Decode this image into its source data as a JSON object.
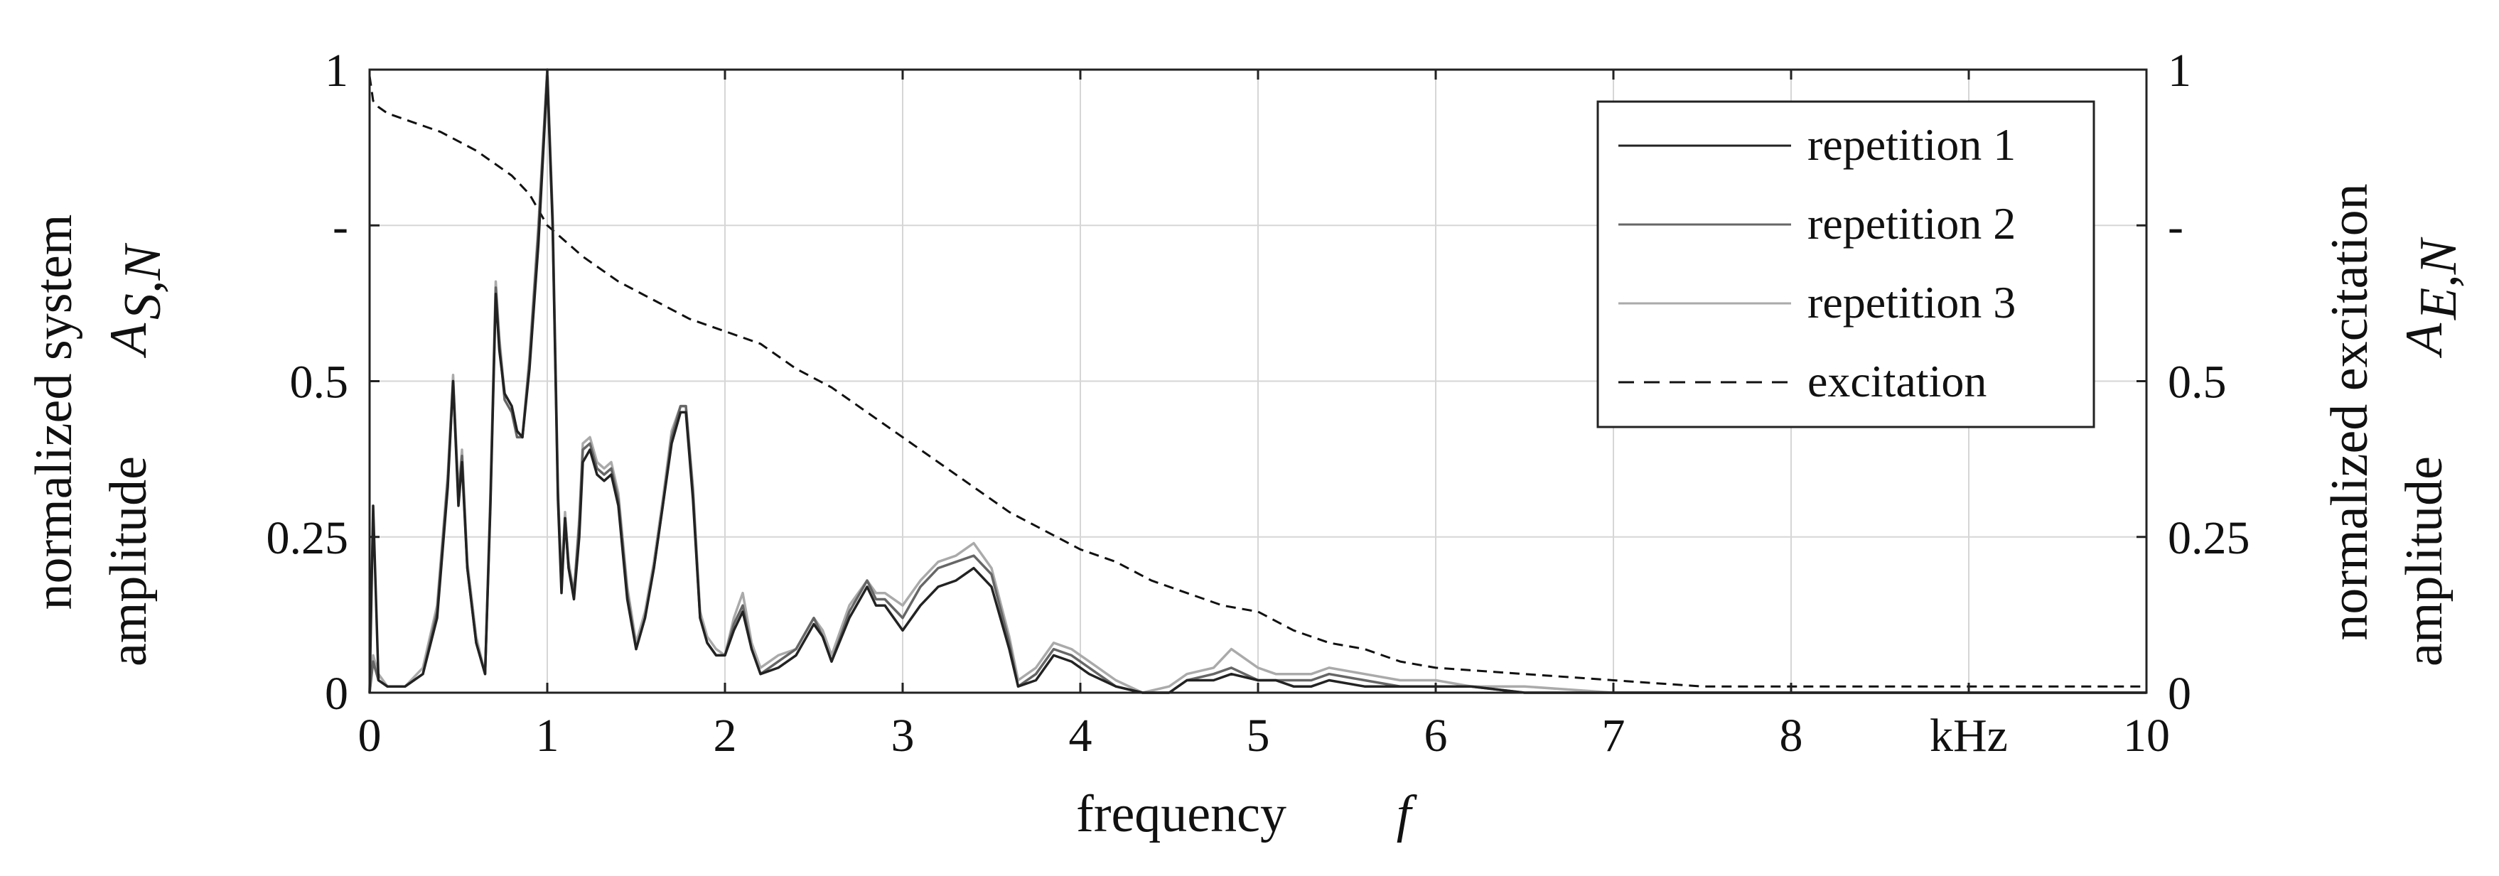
{
  "chart_data": {
    "type": "line",
    "xlabel": "frequency",
    "xlabel_symbol": "f",
    "ylabel_left_line1": "normalized system",
    "ylabel_left_line2": "amplitude",
    "ylabel_left_symbol": "A",
    "ylabel_left_subscript": "S,N",
    "ylabel_right_line1": "normalized excitation",
    "ylabel_right_line2": "amplitude",
    "ylabel_right_symbol": "A",
    "ylabel_right_subscript": "E,N",
    "xlim": [
      0,
      10
    ],
    "ylim": [
      0,
      1
    ],
    "x_ticks": [
      {
        "value": 0,
        "label": "0"
      },
      {
        "value": 1,
        "label": "1"
      },
      {
        "value": 2,
        "label": "2"
      },
      {
        "value": 3,
        "label": "3"
      },
      {
        "value": 4,
        "label": "4"
      },
      {
        "value": 5,
        "label": "5"
      },
      {
        "value": 6,
        "label": "6"
      },
      {
        "value": 7,
        "label": "7"
      },
      {
        "value": 8,
        "label": "8"
      },
      {
        "value": 9,
        "label": "kHz"
      },
      {
        "value": 10,
        "label": "10"
      }
    ],
    "y_ticks_left": [
      {
        "value": 0,
        "label": "0"
      },
      {
        "value": 0.25,
        "label": "0.25"
      },
      {
        "value": 0.5,
        "label": "0.5"
      },
      {
        "value": 0.75,
        "label": "-"
      },
      {
        "value": 1,
        "label": "1"
      }
    ],
    "y_ticks_right": [
      {
        "value": 0,
        "label": "0"
      },
      {
        "value": 0.25,
        "label": "0.25"
      },
      {
        "value": 0.5,
        "label": "0.5"
      },
      {
        "value": 0.75,
        "label": "-"
      },
      {
        "value": 1,
        "label": "1"
      }
    ],
    "grid": true,
    "legend_position": "top-right",
    "series": [
      {
        "name": "repetition 1",
        "color": "#222222",
        "style": "solid",
        "x": [
          0,
          0.02,
          0.05,
          0.1,
          0.2,
          0.3,
          0.38,
          0.44,
          0.47,
          0.5,
          0.52,
          0.55,
          0.6,
          0.65,
          0.68,
          0.71,
          0.73,
          0.76,
          0.8,
          0.83,
          0.86,
          0.9,
          0.95,
          1.0,
          1.03,
          1.06,
          1.08,
          1.1,
          1.12,
          1.15,
          1.18,
          1.2,
          1.24,
          1.28,
          1.32,
          1.36,
          1.4,
          1.45,
          1.5,
          1.55,
          1.6,
          1.65,
          1.7,
          1.75,
          1.78,
          1.82,
          1.86,
          1.9,
          1.95,
          2.0,
          2.05,
          2.1,
          2.15,
          2.2,
          2.3,
          2.4,
          2.5,
          2.55,
          2.6,
          2.7,
          2.8,
          2.85,
          2.9,
          3.0,
          3.1,
          3.2,
          3.3,
          3.4,
          3.5,
          3.6,
          3.65,
          3.75,
          3.85,
          3.95,
          4.05,
          4.2,
          4.35,
          4.5,
          4.6,
          4.75,
          4.85,
          5.0,
          5.1,
          5.2,
          5.3,
          5.4,
          5.6,
          5.8,
          6.0,
          6.2,
          6.5,
          7.0,
          7.5,
          8.0,
          8.5,
          9.0,
          9.5,
          10.0
        ],
        "y": [
          0.0,
          0.3,
          0.02,
          0.01,
          0.01,
          0.03,
          0.12,
          0.33,
          0.5,
          0.3,
          0.37,
          0.2,
          0.08,
          0.03,
          0.3,
          0.64,
          0.55,
          0.48,
          0.46,
          0.42,
          0.41,
          0.52,
          0.72,
          0.99,
          0.75,
          0.31,
          0.16,
          0.28,
          0.2,
          0.15,
          0.25,
          0.37,
          0.39,
          0.35,
          0.34,
          0.35,
          0.3,
          0.15,
          0.07,
          0.12,
          0.2,
          0.3,
          0.4,
          0.45,
          0.45,
          0.31,
          0.12,
          0.08,
          0.06,
          0.06,
          0.1,
          0.13,
          0.07,
          0.03,
          0.04,
          0.06,
          0.11,
          0.09,
          0.05,
          0.12,
          0.17,
          0.14,
          0.14,
          0.1,
          0.14,
          0.17,
          0.18,
          0.2,
          0.17,
          0.07,
          0.01,
          0.02,
          0.06,
          0.05,
          0.03,
          0.01,
          0.0,
          0.0,
          0.02,
          0.02,
          0.03,
          0.02,
          0.02,
          0.01,
          0.01,
          0.02,
          0.01,
          0.01,
          0.01,
          0.01,
          0.0,
          0.0,
          0.0,
          0.0,
          0.0,
          0.0,
          0.0,
          0.0
        ]
      },
      {
        "name": "repetition 2",
        "color": "#666666",
        "style": "solid",
        "x": [
          0,
          0.02,
          0.05,
          0.1,
          0.2,
          0.3,
          0.38,
          0.44,
          0.47,
          0.5,
          0.52,
          0.55,
          0.6,
          0.65,
          0.68,
          0.71,
          0.73,
          0.76,
          0.8,
          0.83,
          0.86,
          0.9,
          0.95,
          1.0,
          1.03,
          1.06,
          1.08,
          1.1,
          1.12,
          1.15,
          1.18,
          1.2,
          1.24,
          1.28,
          1.32,
          1.36,
          1.4,
          1.45,
          1.5,
          1.55,
          1.6,
          1.65,
          1.7,
          1.75,
          1.78,
          1.82,
          1.86,
          1.9,
          1.95,
          2.0,
          2.05,
          2.1,
          2.15,
          2.2,
          2.3,
          2.4,
          2.5,
          2.55,
          2.6,
          2.7,
          2.8,
          2.85,
          2.9,
          3.0,
          3.1,
          3.2,
          3.3,
          3.4,
          3.5,
          3.6,
          3.65,
          3.75,
          3.85,
          3.95,
          4.05,
          4.2,
          4.35,
          4.5,
          4.6,
          4.75,
          4.85,
          5.0,
          5.1,
          5.2,
          5.3,
          5.4,
          5.6,
          5.8,
          6.0,
          6.2,
          6.5,
          7.0,
          7.5,
          8.0,
          8.5,
          9.0,
          9.5,
          10.0
        ],
        "y": [
          0.0,
          0.05,
          0.02,
          0.01,
          0.01,
          0.03,
          0.13,
          0.34,
          0.5,
          0.31,
          0.38,
          0.2,
          0.08,
          0.03,
          0.31,
          0.65,
          0.56,
          0.47,
          0.45,
          0.41,
          0.41,
          0.53,
          0.74,
          1.0,
          0.76,
          0.32,
          0.17,
          0.28,
          0.2,
          0.16,
          0.27,
          0.39,
          0.4,
          0.36,
          0.35,
          0.36,
          0.31,
          0.16,
          0.07,
          0.12,
          0.2,
          0.3,
          0.41,
          0.46,
          0.46,
          0.32,
          0.12,
          0.08,
          0.06,
          0.06,
          0.11,
          0.14,
          0.07,
          0.03,
          0.05,
          0.07,
          0.12,
          0.09,
          0.05,
          0.13,
          0.18,
          0.15,
          0.15,
          0.12,
          0.17,
          0.2,
          0.21,
          0.22,
          0.19,
          0.08,
          0.01,
          0.03,
          0.07,
          0.06,
          0.04,
          0.01,
          0.0,
          0.0,
          0.02,
          0.03,
          0.04,
          0.02,
          0.02,
          0.02,
          0.02,
          0.03,
          0.02,
          0.01,
          0.01,
          0.01,
          0.0,
          0.0,
          0.0,
          0.0,
          0.0,
          0.0,
          0.0,
          0.0
        ]
      },
      {
        "name": "repetition 3",
        "color": "#aaaaaa",
        "style": "solid",
        "x": [
          0,
          0.02,
          0.05,
          0.1,
          0.2,
          0.3,
          0.38,
          0.44,
          0.47,
          0.5,
          0.52,
          0.55,
          0.6,
          0.65,
          0.68,
          0.71,
          0.73,
          0.76,
          0.8,
          0.83,
          0.86,
          0.9,
          0.95,
          1.0,
          1.03,
          1.06,
          1.08,
          1.1,
          1.12,
          1.15,
          1.18,
          1.2,
          1.24,
          1.28,
          1.32,
          1.36,
          1.4,
          1.45,
          1.5,
          1.55,
          1.6,
          1.65,
          1.7,
          1.75,
          1.78,
          1.82,
          1.86,
          1.9,
          1.95,
          2.0,
          2.05,
          2.1,
          2.15,
          2.2,
          2.3,
          2.4,
          2.5,
          2.55,
          2.6,
          2.7,
          2.8,
          2.85,
          2.9,
          3.0,
          3.1,
          3.2,
          3.3,
          3.4,
          3.5,
          3.6,
          3.65,
          3.75,
          3.85,
          3.95,
          4.05,
          4.2,
          4.35,
          4.5,
          4.6,
          4.75,
          4.85,
          5.0,
          5.1,
          5.2,
          5.3,
          5.4,
          5.6,
          5.8,
          6.0,
          6.2,
          6.5,
          7.0,
          7.5,
          8.0,
          8.5,
          9.0,
          9.5,
          10.0
        ],
        "y": [
          0.0,
          0.06,
          0.03,
          0.01,
          0.01,
          0.04,
          0.14,
          0.35,
          0.51,
          0.32,
          0.39,
          0.21,
          0.09,
          0.03,
          0.32,
          0.66,
          0.57,
          0.48,
          0.46,
          0.42,
          0.41,
          0.54,
          0.75,
          1.0,
          0.77,
          0.33,
          0.18,
          0.29,
          0.21,
          0.16,
          0.28,
          0.4,
          0.41,
          0.37,
          0.36,
          0.37,
          0.32,
          0.17,
          0.08,
          0.13,
          0.21,
          0.31,
          0.42,
          0.46,
          0.46,
          0.33,
          0.13,
          0.09,
          0.07,
          0.06,
          0.12,
          0.16,
          0.08,
          0.04,
          0.06,
          0.07,
          0.12,
          0.1,
          0.06,
          0.14,
          0.18,
          0.16,
          0.16,
          0.14,
          0.18,
          0.21,
          0.22,
          0.24,
          0.2,
          0.09,
          0.02,
          0.04,
          0.08,
          0.07,
          0.05,
          0.02,
          0.0,
          0.01,
          0.03,
          0.04,
          0.07,
          0.04,
          0.03,
          0.03,
          0.03,
          0.04,
          0.03,
          0.02,
          0.02,
          0.01,
          0.01,
          0.0,
          0.0,
          0.0,
          0.0,
          0.0,
          0.0,
          0.0
        ]
      },
      {
        "name": "excitation",
        "color": "#111111",
        "style": "dashed",
        "x": [
          0,
          0.02,
          0.05,
          0.1,
          0.2,
          0.4,
          0.6,
          0.8,
          0.9,
          1.0,
          1.2,
          1.4,
          1.6,
          1.8,
          2.0,
          2.2,
          2.4,
          2.6,
          2.8,
          3.0,
          3.2,
          3.4,
          3.6,
          3.8,
          4.0,
          4.2,
          4.4,
          4.6,
          4.8,
          5.0,
          5.2,
          5.4,
          5.6,
          5.8,
          6.0,
          6.5,
          7.0,
          7.5,
          8.0,
          8.5,
          9.0,
          9.5,
          10.0
        ],
        "y": [
          0.99,
          0.95,
          0.94,
          0.93,
          0.92,
          0.9,
          0.87,
          0.83,
          0.8,
          0.75,
          0.7,
          0.66,
          0.63,
          0.6,
          0.58,
          0.56,
          0.52,
          0.49,
          0.45,
          0.41,
          0.37,
          0.33,
          0.29,
          0.26,
          0.23,
          0.21,
          0.18,
          0.16,
          0.14,
          0.13,
          0.1,
          0.08,
          0.07,
          0.05,
          0.04,
          0.03,
          0.02,
          0.01,
          0.01,
          0.01,
          0.01,
          0.01,
          0.01
        ]
      }
    ]
  }
}
